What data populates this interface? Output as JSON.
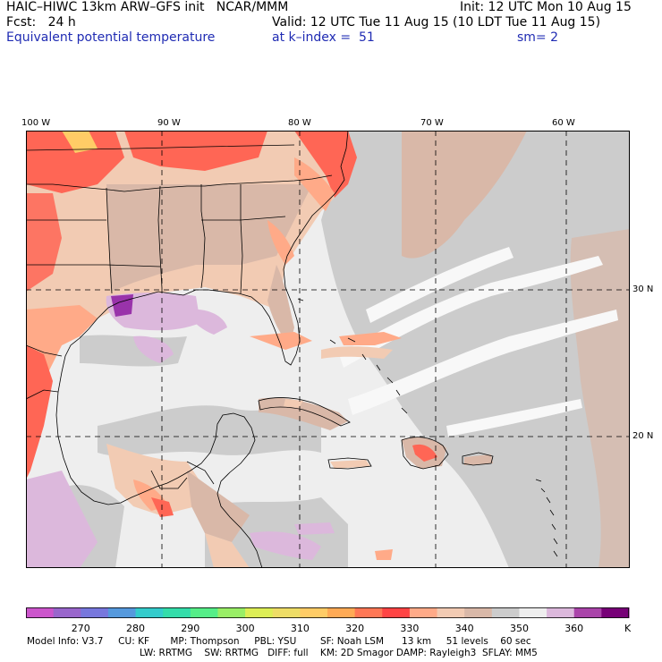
{
  "header": {
    "line1_left": "HAIC–HIWC 13km ARW–GFS init   NCAR/MMM",
    "line1_right": "Init: 12 UTC Mon 10 Aug 15",
    "line2_left": "Fcst:   24 h",
    "line2_right": "Valid: 12 UTC Tue 11 Aug 15 (10 LDT Tue 11 Aug 15)",
    "line3_left": "Equivalent potential temperature",
    "line3_mid": "at k–index =  51",
    "line3_right": "sm= 2"
  },
  "axes": {
    "lon_labels": [
      "100 W",
      "90 W",
      "80 W",
      "70 W",
      "60 W"
    ],
    "lat_labels": [
      "30 N",
      "20 N"
    ]
  },
  "colorbar": {
    "colors": [
      "#cc55cc",
      "#9966cc",
      "#7777dd",
      "#5599dd",
      "#33cccc",
      "#33ddaa",
      "#55ee88",
      "#99ee66",
      "#ddee55",
      "#eedd66",
      "#ffcc66",
      "#ffaa55",
      "#ff7755",
      "#ff4444",
      "#ffaa88",
      "#f2cbb3",
      "#d9b8a8",
      "#cccccc",
      "#eeeeee",
      "#dcb8dc",
      "#aa44aa",
      "#770077"
    ],
    "tick_labels": [
      "270",
      "280",
      "290",
      "300",
      "310",
      "320",
      "330",
      "340",
      "350",
      "360"
    ],
    "unit": "K"
  },
  "footer": {
    "line1": "Model Info: V3.7     CU: KF       MP: Thompson     PBL: YSU        SF: Noah LSM      13 km     51 levels    60 sec",
    "line2": "LW: RRTMG    SW: RRTMG   DIFF: full    KM: 2D Smagor DAMP: Rayleigh3  SFLAY: MM5"
  },
  "map_colors": {
    "ocean": "#eeeeee",
    "grey": "#cccccc",
    "tan": "#d9b8a8",
    "peach": "#f2cbb3",
    "salmon": "#ffaa88",
    "red": "#ff6655",
    "orange": "#ffaa55",
    "yellow": "#ffcc66",
    "lavender": "#dcb8dc",
    "purple": "#9933aa",
    "white": "#f8f8f8"
  }
}
